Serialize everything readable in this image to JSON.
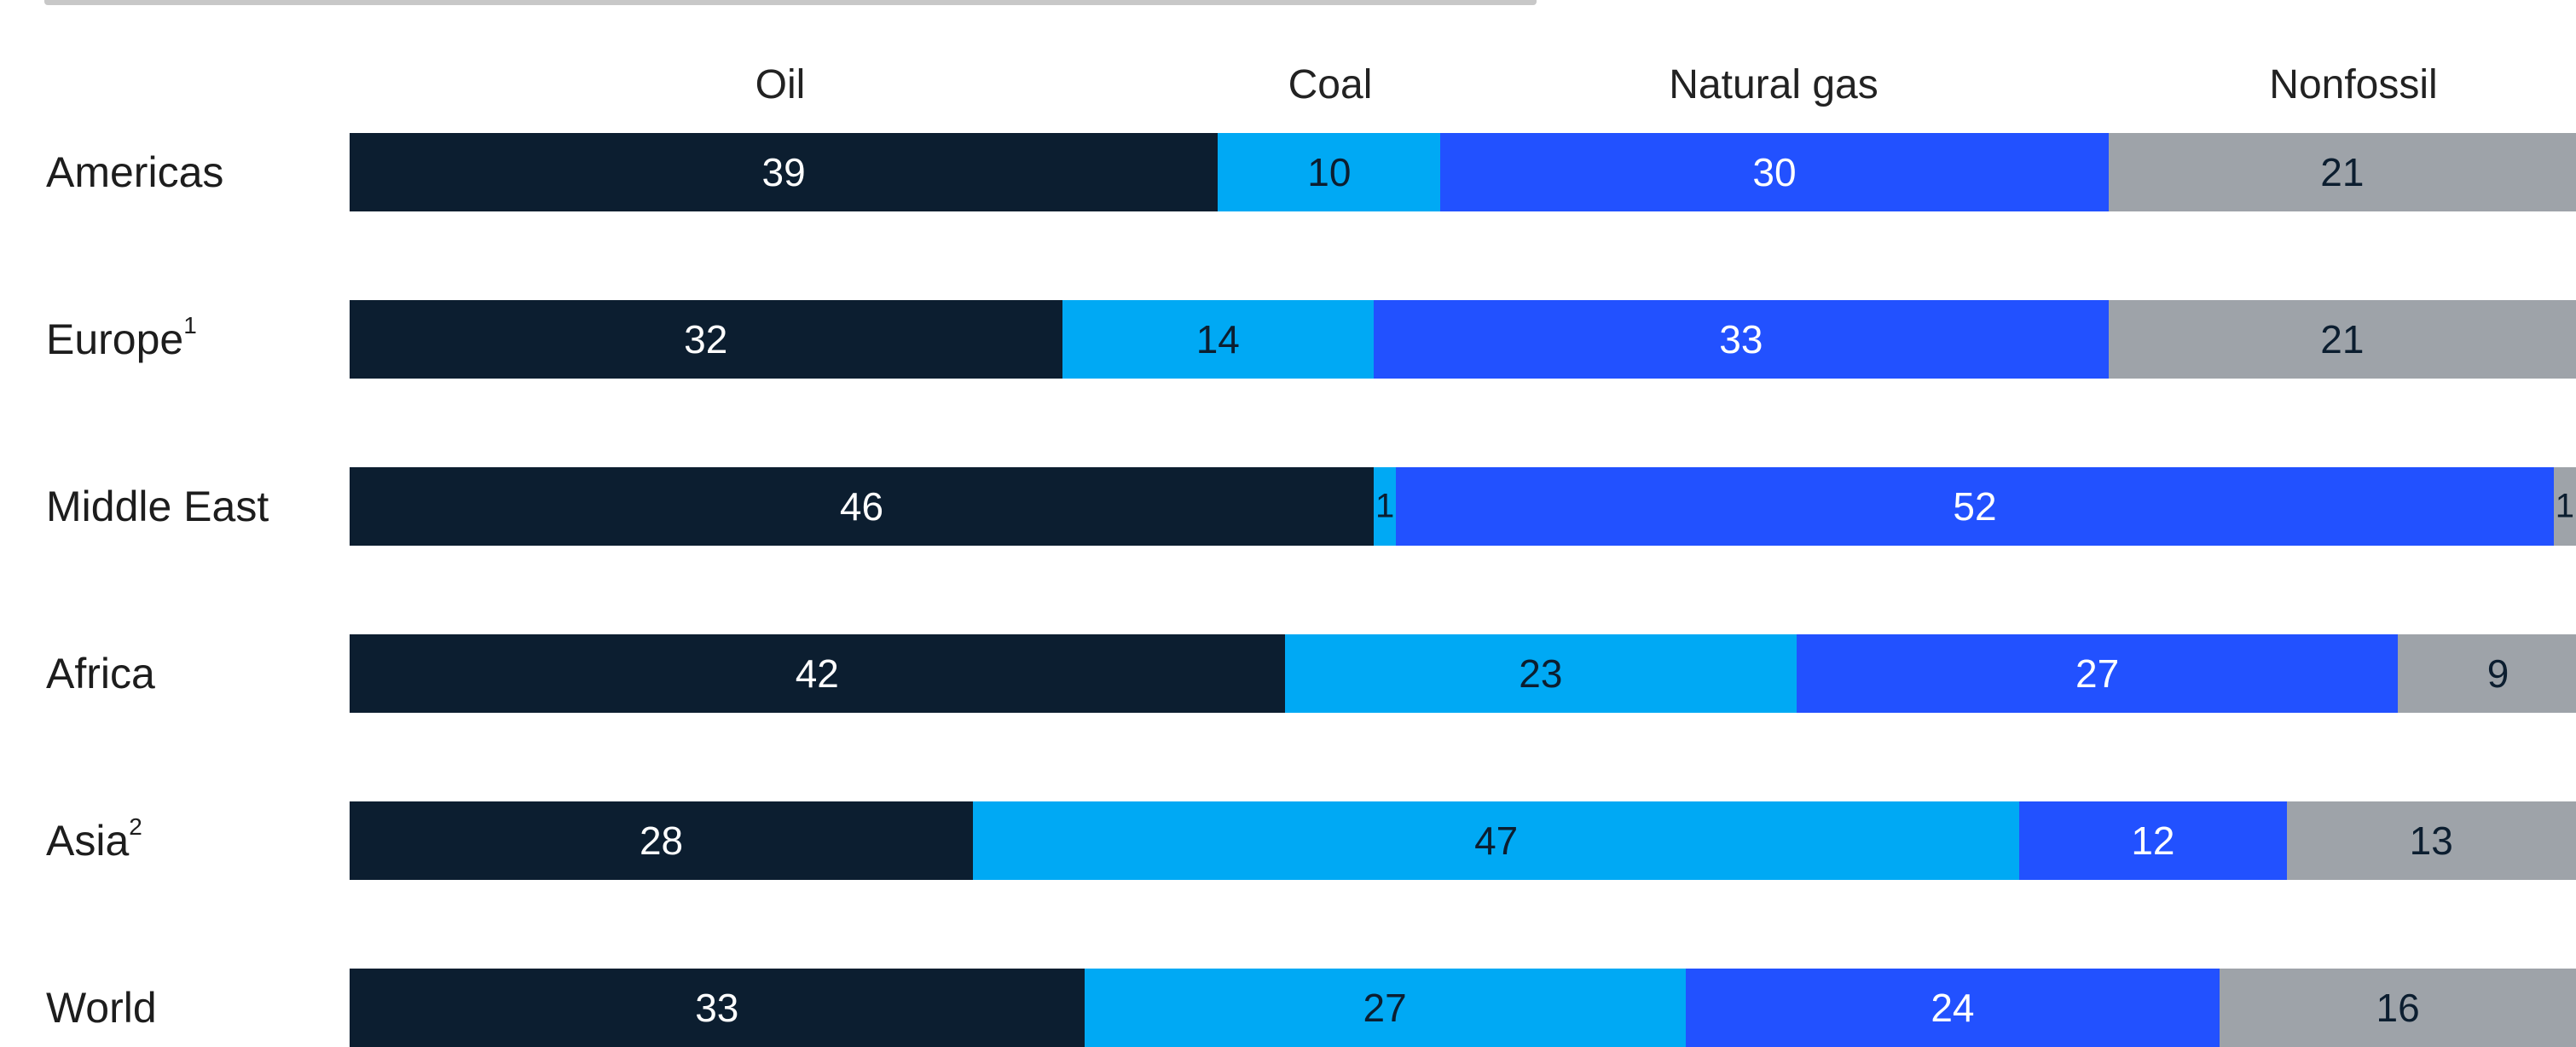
{
  "chart_data": {
    "type": "bar",
    "orientation": "horizontal",
    "stacked": true,
    "categories": [
      "Americas",
      "Europe",
      "Middle East",
      "Africa",
      "Asia",
      "World"
    ],
    "category_footnotes": [
      "",
      "1",
      "",
      "",
      "2",
      ""
    ],
    "series": [
      {
        "name": "Oil",
        "values": [
          39,
          32,
          46,
          42,
          28,
          33
        ]
      },
      {
        "name": "Coal",
        "values": [
          10,
          14,
          1,
          23,
          47,
          27
        ]
      },
      {
        "name": "Natural gas",
        "values": [
          30,
          33,
          52,
          27,
          12,
          24
        ]
      },
      {
        "name": "Nonfossil",
        "values": [
          21,
          21,
          1,
          9,
          13,
          16
        ]
      }
    ],
    "xlim": [
      0,
      100
    ],
    "grid": false,
    "legend_placement": "top",
    "colors": {
      "Oil": "#0c1e30",
      "Coal": "#00a9f4",
      "Natural gas": "#2251ff",
      "Nonfossil": "#9ea3a9"
    },
    "label_colors": {
      "Oil": "#ffffff",
      "Coal": "#0c1e30",
      "Natural gas": "#ffffff",
      "Nonfossil": "#0c1e30"
    }
  }
}
